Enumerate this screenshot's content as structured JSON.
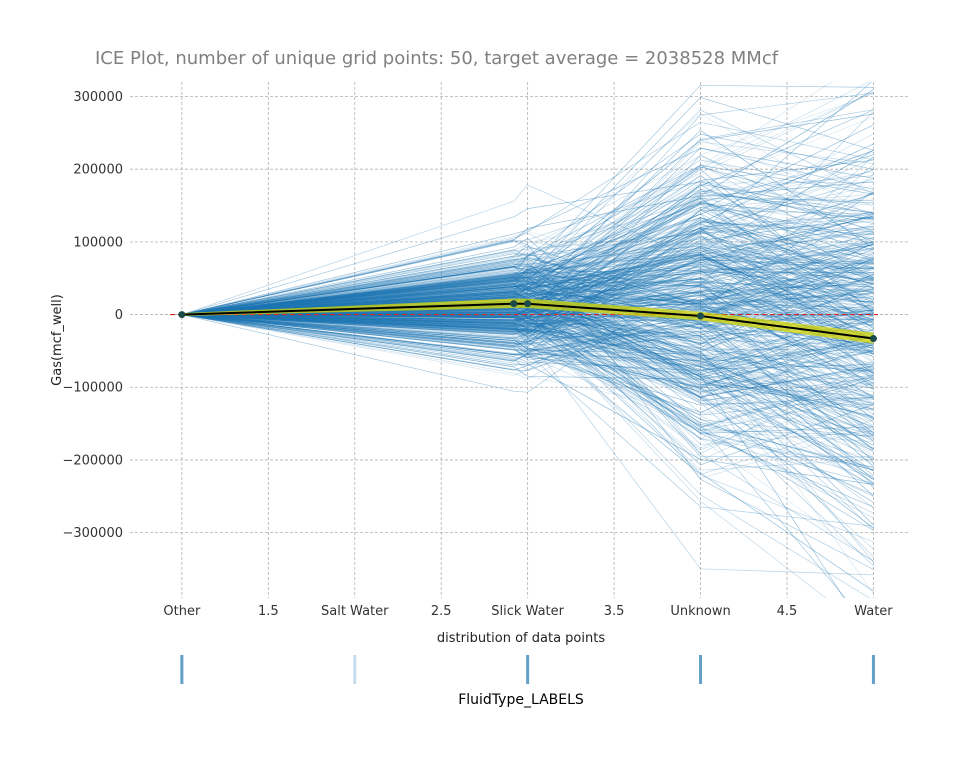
{
  "chart_data": {
    "type": "line",
    "title": "ICE Plot, number of unique grid points: 50, target average = 2038528 MMcf",
    "ylabel": "Gas(mcf_well)",
    "xlabel": "distribution of data points",
    "dist_label": "FluidType_LABELS",
    "ylim": [
      -390000,
      320000
    ],
    "xlim": [
      -0.3,
      4.2
    ],
    "x_ticks": [
      {
        "x": 0,
        "label": "Other"
      },
      {
        "x": 0.5,
        "label": "1.5"
      },
      {
        "x": 1,
        "label": "Salt Water"
      },
      {
        "x": 1.5,
        "label": "2.5"
      },
      {
        "x": 2,
        "label": "Slick Water"
      },
      {
        "x": 2.5,
        "label": "3.5"
      },
      {
        "x": 3,
        "label": "Unknown"
      },
      {
        "x": 3.5,
        "label": "4.5"
      },
      {
        "x": 4,
        "label": "Water"
      }
    ],
    "y_ticks": [
      {
        "y": 300000,
        "label": "300000"
      },
      {
        "y": 200000,
        "label": "200000"
      },
      {
        "y": 100000,
        "label": "100000"
      },
      {
        "y": 0,
        "label": "0"
      },
      {
        "y": -100000,
        "label": "−100000"
      },
      {
        "y": -200000,
        "label": "−200000"
      },
      {
        "y": -300000,
        "label": "−300000"
      }
    ],
    "grid": true,
    "reference_line_y": 0,
    "ice_x": [
      0,
      1.92,
      2,
      3,
      4
    ],
    "average_curve": {
      "x": [
        0,
        1.92,
        2,
        3,
        4
      ],
      "y": [
        0,
        15000,
        15000,
        -2000,
        -33000
      ]
    },
    "average_band": {
      "upper": [
        2000,
        22000,
        22000,
        4000,
        -25000
      ],
      "lower": [
        -2000,
        9000,
        9000,
        -8000,
        -40000
      ]
    },
    "distribution_ticks": [
      {
        "x": 0,
        "weight": 1.0
      },
      {
        "x": 1,
        "weight": 0.2
      },
      {
        "x": 2,
        "weight": 1.0
      },
      {
        "x": 3,
        "weight": 1.0
      },
      {
        "x": 4,
        "weight": 1.0
      }
    ],
    "colors": {
      "ice_line": "#1f77b4",
      "average_line": "#000000",
      "average_band": "#d4d400",
      "average_point": "#1a4a4a",
      "reference_line": "#d62728",
      "grid": "#b0b0b0",
      "dist_tick": "#1f77b4"
    }
  }
}
